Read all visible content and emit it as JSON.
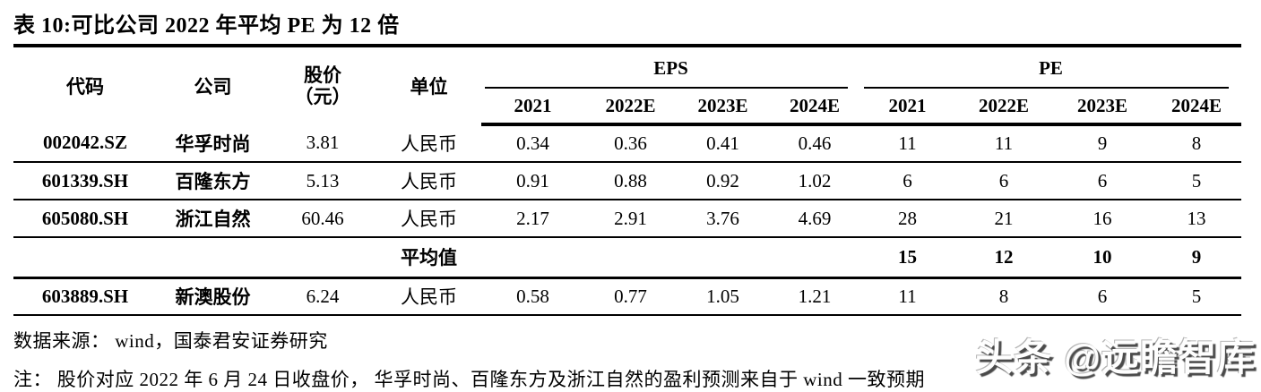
{
  "title": "表 10:可比公司 2022 年平均 PE 为 12 倍",
  "table": {
    "headers": {
      "code": "代码",
      "company": "公司",
      "price_line1": "股价",
      "price_line2": "（元）",
      "unit": "单位",
      "eps_group": "EPS",
      "pe_group": "PE",
      "years": [
        "2021",
        "2022E",
        "2023E",
        "2024E"
      ]
    },
    "rows": [
      {
        "code": "002042.SZ",
        "company": "华孚时尚",
        "price": "3.81",
        "unit": "人民币",
        "eps": [
          "0.34",
          "0.36",
          "0.41",
          "0.46"
        ],
        "pe": [
          "11",
          "11",
          "9",
          "8"
        ],
        "is_average": false
      },
      {
        "code": "601339.SH",
        "company": "百隆东方",
        "price": "5.13",
        "unit": "人民币",
        "eps": [
          "0.91",
          "0.88",
          "0.92",
          "1.02"
        ],
        "pe": [
          "6",
          "6",
          "6",
          "5"
        ],
        "is_average": false
      },
      {
        "code": "605080.SH",
        "company": "浙江自然",
        "price": "60.46",
        "unit": "人民币",
        "eps": [
          "2.17",
          "2.91",
          "3.76",
          "4.69"
        ],
        "pe": [
          "28",
          "21",
          "16",
          "13"
        ],
        "is_average": false
      },
      {
        "code": "",
        "company": "",
        "price": "",
        "unit": "平均值",
        "eps": [
          "",
          "",
          "",
          ""
        ],
        "pe": [
          "15",
          "12",
          "10",
          "9"
        ],
        "is_average": true
      },
      {
        "code": "603889.SH",
        "company": "新澳股份",
        "price": "6.24",
        "unit": "人民币",
        "eps": [
          "0.58",
          "0.77",
          "1.05",
          "1.21"
        ],
        "pe": [
          "11",
          "8",
          "6",
          "5"
        ],
        "is_average": false
      }
    ]
  },
  "source": "数据来源： wind，国泰君安证券研究",
  "note": "注： 股价对应 2022 年 6 月 24 日收盘价， 华孚时尚、百隆东方及浙江自然的盈利预测来自于 wind 一致预期",
  "watermark": "头条 @远瞻智库"
}
